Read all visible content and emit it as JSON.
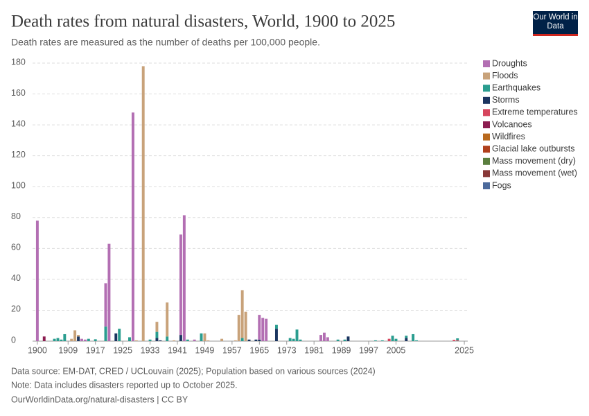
{
  "chart_data": {
    "type": "stacked-bar",
    "title": "Death rates from natural disasters, World, 1900 to 2025",
    "subtitle": "Death rates are measured as the number of deaths per 100,000 people.",
    "logo": "Our World in Data",
    "source": "Data source: EM-DAT, CRED / UCLouvain (2025); Population based on various sources (2024)",
    "note": "Note: Data includes disasters reported up to October 2025.",
    "footer": "OurWorldinData.org/natural-disasters | CC BY",
    "x": [
      1900,
      1902,
      1905,
      1906,
      1907,
      1908,
      1910,
      1911,
      1912,
      1913,
      1914,
      1915,
      1917,
      1920,
      1921,
      1923,
      1924,
      1927,
      1928,
      1929,
      1931,
      1933,
      1935,
      1936,
      1938,
      1940,
      1942,
      1943,
      1944,
      1946,
      1948,
      1949,
      1950,
      1954,
      1958,
      1959,
      1960,
      1961,
      1962,
      1964,
      1965,
      1966,
      1967,
      1970,
      1974,
      1975,
      1976,
      1977,
      1983,
      1984,
      1985,
      1988,
      1990,
      1991,
      1999,
      2001,
      2003,
      2004,
      2005,
      2008,
      2010,
      2011,
      2022,
      2023
    ],
    "series": [
      {
        "name": "Droughts",
        "color": "#b36fb3",
        "values": [
          78,
          0,
          0,
          0,
          0,
          0,
          0,
          0,
          0,
          1.5,
          1,
          0,
          0,
          28,
          63,
          0,
          0,
          0,
          148,
          0,
          0,
          0,
          0,
          0,
          0,
          0,
          65,
          81.5,
          0,
          1,
          0,
          0,
          0,
          0,
          0,
          0,
          0,
          0,
          0,
          0,
          16,
          15,
          14.5,
          0,
          0,
          0,
          0,
          0,
          4,
          5.5,
          2.5,
          0,
          0,
          0,
          0,
          0,
          0,
          0,
          0,
          0,
          0,
          0,
          0,
          0
        ]
      },
      {
        "name": "Floods",
        "color": "#c8a27a",
        "values": [
          0,
          0,
          0,
          0,
          0,
          0,
          1.5,
          7,
          1,
          0,
          0,
          0,
          0,
          0,
          0,
          0,
          0,
          0,
          0,
          0.5,
          178,
          0,
          6.5,
          0,
          22,
          0.5,
          0,
          0,
          0,
          0,
          0,
          5,
          0.5,
          1.5,
          0.5,
          17,
          31,
          19,
          0,
          0,
          0,
          0,
          0,
          0,
          0,
          0,
          0,
          0,
          0,
          0,
          0,
          0,
          0,
          0,
          0,
          0,
          0,
          0,
          0,
          0,
          0,
          0,
          0,
          0
        ]
      },
      {
        "name": "Earthquakes",
        "color": "#2a9d8f",
        "values": [
          0,
          0,
          1.5,
          2,
          1,
          4.5,
          0,
          0,
          0,
          0,
          0,
          1.5,
          1.2,
          9.5,
          0,
          0,
          8,
          2.5,
          0,
          0,
          0,
          1,
          4,
          0,
          3,
          0,
          0,
          0,
          1,
          0,
          5,
          0,
          0,
          0,
          0,
          0,
          2,
          0,
          0,
          0,
          0,
          0,
          0,
          2.5,
          2,
          1.5,
          7.5,
          1,
          0,
          0,
          0,
          1,
          1,
          0,
          0.5,
          0.5,
          0,
          3.5,
          1.5,
          1.5,
          4.5,
          0.5,
          0,
          1.3
        ]
      },
      {
        "name": "Storms",
        "color": "#1b3560",
        "values": [
          0,
          0,
          0,
          0,
          0,
          0,
          0,
          0,
          3,
          0,
          0,
          0,
          0,
          0,
          0,
          5,
          0,
          0,
          0,
          0,
          0,
          0,
          2,
          0.5,
          0,
          0,
          4,
          0,
          0,
          0,
          0,
          0,
          0,
          0,
          0,
          0,
          0,
          0,
          1,
          1,
          1,
          0,
          0,
          8,
          0,
          0,
          0,
          0,
          0,
          0,
          0,
          0,
          0,
          3,
          0,
          0,
          0,
          0,
          0,
          2,
          0,
          0,
          0,
          0
        ]
      },
      {
        "name": "Extreme temperatures",
        "color": "#d6455d",
        "values": [
          0,
          0,
          0,
          0,
          0,
          0,
          0,
          0,
          0,
          0,
          0,
          0,
          0,
          0,
          0,
          0,
          0,
          0,
          0,
          0,
          0,
          0,
          0,
          0,
          0,
          0,
          0,
          0,
          0,
          0,
          0,
          0,
          0,
          0,
          0,
          0,
          0,
          0,
          0,
          0,
          0,
          0,
          0,
          0,
          0,
          0,
          0,
          0,
          0,
          0,
          0,
          0,
          0,
          0,
          0,
          0,
          1.5,
          0,
          0,
          0,
          0,
          0,
          0.8,
          0.5
        ]
      },
      {
        "name": "Volcanoes",
        "color": "#8c1d50",
        "values": [
          0,
          3,
          0,
          0,
          0,
          0,
          0,
          0,
          0,
          0,
          0,
          0,
          0,
          0,
          0,
          0,
          0,
          0,
          0,
          0,
          0,
          0,
          0,
          0,
          0,
          0,
          0,
          0,
          0,
          0,
          0,
          0,
          0,
          0,
          0,
          0,
          0,
          0,
          0,
          0,
          0,
          0,
          0,
          0,
          0,
          0,
          0,
          0,
          0,
          0,
          0,
          0,
          0,
          0,
          0,
          0,
          0,
          0,
          0,
          0,
          0,
          0,
          0,
          0
        ]
      },
      {
        "name": "Wildfires",
        "color": "#b8691e",
        "values": [
          0,
          0,
          0,
          0,
          0,
          0,
          0,
          0,
          0,
          0,
          0,
          0,
          0,
          0,
          0,
          0,
          0,
          0,
          0,
          0,
          0,
          0,
          0,
          0,
          0,
          0,
          0,
          0,
          0,
          0,
          0,
          0,
          0,
          0,
          0,
          0,
          0,
          0,
          0,
          0,
          0,
          0,
          0,
          0,
          0,
          0,
          0,
          0,
          0,
          0,
          0,
          0,
          0,
          0,
          0,
          0,
          0,
          0,
          0,
          0,
          0,
          0,
          0,
          0
        ]
      },
      {
        "name": "Glacial lake outbursts",
        "color": "#b0401c",
        "values": [
          0,
          0,
          0,
          0,
          0,
          0,
          0,
          0,
          0,
          0,
          0,
          0,
          0,
          0,
          0,
          0,
          0,
          0,
          0,
          0,
          0,
          0,
          0,
          0,
          0,
          0,
          0,
          0,
          0,
          0,
          0,
          0,
          0,
          0,
          0,
          0,
          0,
          0,
          0,
          0,
          0,
          0,
          0,
          0,
          0,
          0,
          0,
          0,
          0,
          0,
          0,
          0,
          0,
          0,
          0,
          0,
          0,
          0,
          0,
          0,
          0,
          0,
          0,
          0
        ]
      },
      {
        "name": "Mass movement (dry)",
        "color": "#5a7f3e",
        "values": [
          0,
          0,
          0,
          0,
          0,
          0,
          0,
          0,
          0,
          0,
          0,
          0,
          0,
          0,
          0,
          0,
          0,
          0,
          0,
          0,
          0,
          0,
          0,
          0,
          0,
          0,
          0,
          0,
          0,
          0,
          0,
          0,
          0,
          0,
          0,
          0,
          0,
          0,
          0,
          0,
          0,
          0,
          0,
          0,
          0,
          0,
          0,
          0,
          0,
          0,
          0,
          0,
          0,
          0,
          0,
          0,
          0,
          0,
          0,
          0,
          0,
          0,
          0,
          0
        ]
      },
      {
        "name": "Mass movement (wet)",
        "color": "#883838",
        "values": [
          0,
          0,
          0,
          0,
          0,
          0,
          0,
          0,
          0,
          0,
          0,
          0,
          0,
          0,
          0,
          0,
          0,
          0,
          0,
          0,
          0,
          0,
          0,
          0,
          0,
          0,
          0,
          0,
          0,
          0,
          0,
          0,
          0,
          0,
          0,
          0,
          0,
          0,
          0,
          0,
          0,
          0,
          0,
          0,
          0,
          0,
          0,
          0,
          0,
          0,
          0,
          0,
          0,
          0,
          0,
          0,
          0,
          0,
          0,
          0,
          0,
          0,
          0,
          0
        ]
      },
      {
        "name": "Fogs",
        "color": "#4c6a9c",
        "values": [
          0,
          0,
          0,
          0,
          0,
          0,
          0,
          0,
          0,
          0,
          0,
          0,
          0,
          0,
          0,
          0,
          0,
          0,
          0,
          0,
          0,
          0,
          0,
          0,
          0,
          0,
          0,
          0,
          0,
          0,
          0,
          0,
          0,
          0,
          0,
          0,
          0,
          0,
          0,
          0,
          0,
          0,
          0,
          0,
          0,
          0,
          0,
          0,
          0,
          0,
          0,
          0,
          0,
          0,
          0,
          0,
          0,
          0,
          0,
          0,
          0,
          0,
          0,
          0
        ]
      }
    ],
    "xlim": [
      1898.6,
      2026
    ],
    "xticks": [
      1900,
      1909,
      1917,
      1925,
      1933,
      1941,
      1949,
      1957,
      1965,
      1973,
      1981,
      1989,
      1997,
      2005,
      2025
    ],
    "ylim": [
      0,
      180
    ],
    "yticks": [
      0,
      20,
      40,
      60,
      80,
      100,
      120,
      140,
      160,
      180
    ],
    "grid": true
  }
}
